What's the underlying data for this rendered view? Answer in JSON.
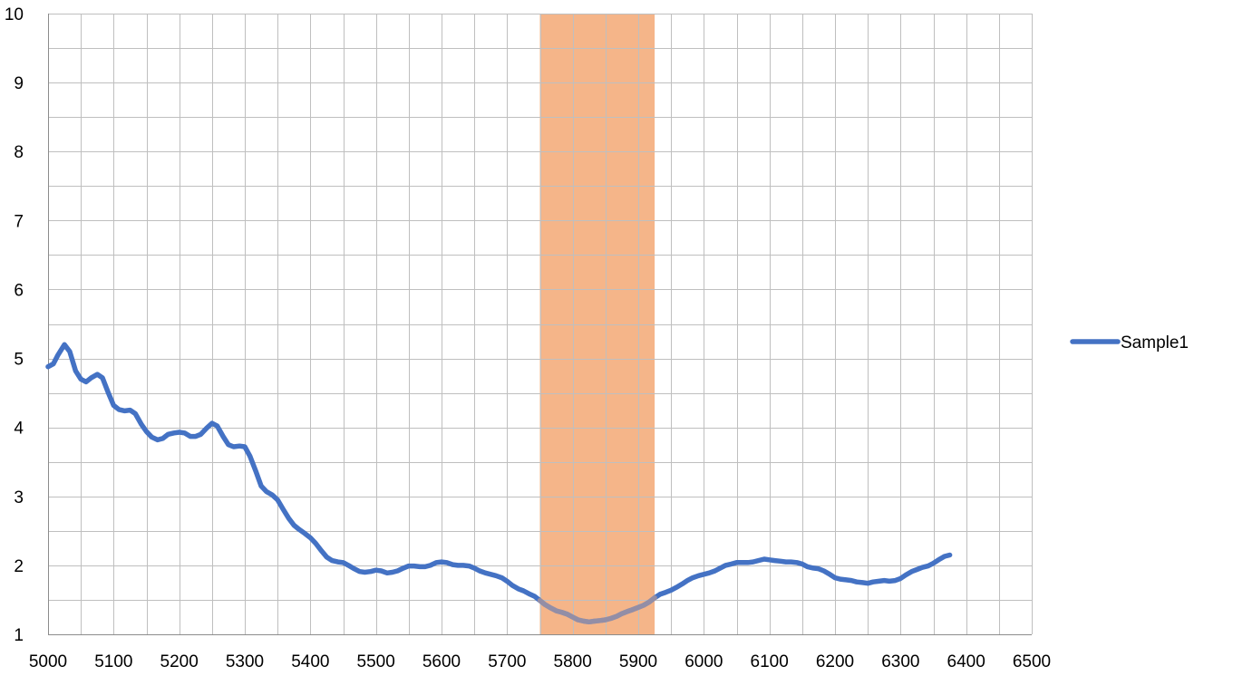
{
  "chart_data": {
    "type": "line",
    "title": "",
    "xlabel": "",
    "ylabel": "",
    "xlim": [
      5000,
      6500
    ],
    "ylim": [
      1,
      10
    ],
    "x_major_step": 100,
    "x_minor_step": 50,
    "y_major_step": 1,
    "y_minor_step": 0.5,
    "x_ticks": [
      "5000",
      "5100",
      "5200",
      "5300",
      "5400",
      "5500",
      "5600",
      "5700",
      "5800",
      "5900",
      "6000",
      "6100",
      "6200",
      "6300",
      "6400",
      "6500"
    ],
    "y_ticks": [
      "1",
      "2",
      "3",
      "4",
      "5",
      "6",
      "7",
      "8",
      "9",
      "10"
    ],
    "grid": true,
    "legend_position": "right",
    "highlight_band": {
      "x_start": 5750,
      "x_end": 5925,
      "color": "#F4B183"
    },
    "colors": {
      "series": "#4472C4",
      "grid": "#BFBFBF",
      "band": "#F4B183"
    },
    "series": [
      {
        "name": "Sample1",
        "points": [
          [
            5000,
            4.88
          ],
          [
            5008,
            4.92
          ],
          [
            5015,
            5.05
          ],
          [
            5025,
            5.2
          ],
          [
            5033,
            5.1
          ],
          [
            5042,
            4.82
          ],
          [
            5050,
            4.7
          ],
          [
            5058,
            4.66
          ],
          [
            5066,
            4.72
          ],
          [
            5075,
            4.77
          ],
          [
            5083,
            4.72
          ],
          [
            5092,
            4.5
          ],
          [
            5100,
            4.32
          ],
          [
            5108,
            4.26
          ],
          [
            5117,
            4.24
          ],
          [
            5125,
            4.25
          ],
          [
            5133,
            4.2
          ],
          [
            5142,
            4.05
          ],
          [
            5150,
            3.94
          ],
          [
            5158,
            3.86
          ],
          [
            5167,
            3.82
          ],
          [
            5175,
            3.84
          ],
          [
            5183,
            3.9
          ],
          [
            5192,
            3.92
          ],
          [
            5200,
            3.93
          ],
          [
            5208,
            3.92
          ],
          [
            5217,
            3.87
          ],
          [
            5225,
            3.87
          ],
          [
            5233,
            3.9
          ],
          [
            5242,
            3.99
          ],
          [
            5250,
            4.06
          ],
          [
            5258,
            4.02
          ],
          [
            5267,
            3.87
          ],
          [
            5275,
            3.75
          ],
          [
            5283,
            3.72
          ],
          [
            5292,
            3.73
          ],
          [
            5300,
            3.72
          ],
          [
            5308,
            3.58
          ],
          [
            5317,
            3.36
          ],
          [
            5325,
            3.15
          ],
          [
            5333,
            3.07
          ],
          [
            5342,
            3.02
          ],
          [
            5350,
            2.95
          ],
          [
            5358,
            2.82
          ],
          [
            5367,
            2.68
          ],
          [
            5375,
            2.58
          ],
          [
            5383,
            2.52
          ],
          [
            5392,
            2.46
          ],
          [
            5400,
            2.4
          ],
          [
            5408,
            2.32
          ],
          [
            5417,
            2.21
          ],
          [
            5425,
            2.12
          ],
          [
            5433,
            2.07
          ],
          [
            5442,
            2.05
          ],
          [
            5450,
            2.04
          ],
          [
            5458,
            2.0
          ],
          [
            5467,
            1.95
          ],
          [
            5475,
            1.91
          ],
          [
            5483,
            1.9
          ],
          [
            5492,
            1.91
          ],
          [
            5500,
            1.93
          ],
          [
            5508,
            1.92
          ],
          [
            5517,
            1.89
          ],
          [
            5525,
            1.9
          ],
          [
            5533,
            1.92
          ],
          [
            5542,
            1.96
          ],
          [
            5550,
            1.99
          ],
          [
            5558,
            1.99
          ],
          [
            5567,
            1.98
          ],
          [
            5575,
            1.98
          ],
          [
            5583,
            2.0
          ],
          [
            5592,
            2.04
          ],
          [
            5600,
            2.05
          ],
          [
            5608,
            2.04
          ],
          [
            5617,
            2.01
          ],
          [
            5625,
            2.0
          ],
          [
            5633,
            2.0
          ],
          [
            5642,
            1.99
          ],
          [
            5650,
            1.96
          ],
          [
            5658,
            1.92
          ],
          [
            5667,
            1.89
          ],
          [
            5675,
            1.87
          ],
          [
            5683,
            1.85
          ],
          [
            5692,
            1.82
          ],
          [
            5700,
            1.77
          ],
          [
            5708,
            1.71
          ],
          [
            5717,
            1.66
          ],
          [
            5725,
            1.63
          ],
          [
            5733,
            1.59
          ],
          [
            5742,
            1.55
          ],
          [
            5750,
            1.49
          ],
          [
            5758,
            1.43
          ],
          [
            5767,
            1.38
          ],
          [
            5775,
            1.34
          ],
          [
            5783,
            1.32
          ],
          [
            5792,
            1.29
          ],
          [
            5800,
            1.25
          ],
          [
            5808,
            1.21
          ],
          [
            5817,
            1.19
          ],
          [
            5825,
            1.18
          ],
          [
            5833,
            1.19
          ],
          [
            5842,
            1.2
          ],
          [
            5850,
            1.21
          ],
          [
            5858,
            1.23
          ],
          [
            5867,
            1.26
          ],
          [
            5875,
            1.3
          ],
          [
            5883,
            1.33
          ],
          [
            5892,
            1.36
          ],
          [
            5900,
            1.39
          ],
          [
            5908,
            1.42
          ],
          [
            5917,
            1.47
          ],
          [
            5925,
            1.53
          ],
          [
            5933,
            1.58
          ],
          [
            5942,
            1.61
          ],
          [
            5950,
            1.64
          ],
          [
            5958,
            1.68
          ],
          [
            5967,
            1.73
          ],
          [
            5975,
            1.78
          ],
          [
            5983,
            1.82
          ],
          [
            5992,
            1.85
          ],
          [
            6000,
            1.87
          ],
          [
            6008,
            1.89
          ],
          [
            6017,
            1.92
          ],
          [
            6025,
            1.96
          ],
          [
            6033,
            2.0
          ],
          [
            6042,
            2.02
          ],
          [
            6050,
            2.04
          ],
          [
            6058,
            2.04
          ],
          [
            6067,
            2.04
          ],
          [
            6075,
            2.05
          ],
          [
            6083,
            2.07
          ],
          [
            6092,
            2.09
          ],
          [
            6100,
            2.08
          ],
          [
            6108,
            2.07
          ],
          [
            6117,
            2.06
          ],
          [
            6125,
            2.05
          ],
          [
            6133,
            2.05
          ],
          [
            6142,
            2.04
          ],
          [
            6150,
            2.02
          ],
          [
            6158,
            1.98
          ],
          [
            6167,
            1.96
          ],
          [
            6175,
            1.95
          ],
          [
            6183,
            1.92
          ],
          [
            6192,
            1.87
          ],
          [
            6200,
            1.82
          ],
          [
            6208,
            1.8
          ],
          [
            6217,
            1.79
          ],
          [
            6225,
            1.78
          ],
          [
            6233,
            1.76
          ],
          [
            6242,
            1.75
          ],
          [
            6250,
            1.74
          ],
          [
            6258,
            1.76
          ],
          [
            6267,
            1.77
          ],
          [
            6275,
            1.78
          ],
          [
            6283,
            1.77
          ],
          [
            6292,
            1.78
          ],
          [
            6300,
            1.81
          ],
          [
            6308,
            1.86
          ],
          [
            6317,
            1.91
          ],
          [
            6325,
            1.94
          ],
          [
            6333,
            1.97
          ],
          [
            6342,
            1.99
          ],
          [
            6350,
            2.03
          ],
          [
            6358,
            2.08
          ],
          [
            6367,
            2.13
          ],
          [
            6375,
            2.15
          ]
        ]
      }
    ]
  }
}
